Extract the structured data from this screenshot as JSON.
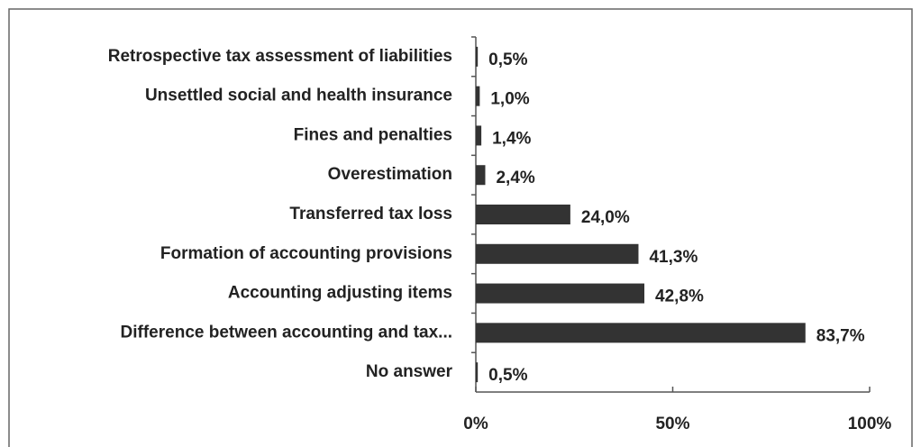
{
  "chart_data": {
    "type": "bar",
    "orientation": "horizontal",
    "categories": [
      "Retrospective tax assessment of liabilities",
      "Unsettled social and health insurance",
      "Fines and penalties",
      "Overestimation",
      "Transferred tax loss",
      "Formation of accounting provisions",
      "Accounting adjusting items",
      "Difference between accounting and tax...",
      "No answer"
    ],
    "values": [
      0.5,
      1.0,
      1.4,
      2.4,
      24.0,
      41.3,
      42.8,
      83.7,
      0.5
    ],
    "value_labels": [
      "0,5%",
      "1,0%",
      "1,4%",
      "2,4%",
      "24,0%",
      "41,3%",
      "42,8%",
      "83,7%",
      "0,5%"
    ],
    "color": "#333333",
    "xlim": [
      0,
      100
    ],
    "xticks": [
      {
        "value": 0,
        "label": "0%"
      },
      {
        "value": 50,
        "label": "50%"
      },
      {
        "value": 100,
        "label": "100%"
      }
    ]
  }
}
